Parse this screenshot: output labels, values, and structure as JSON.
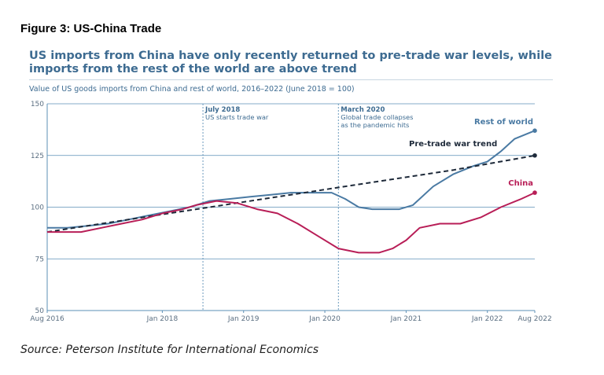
{
  "figure_label": "Figure 3: US-China Trade",
  "source": "Source: Peterson Institute for International Economics",
  "chart_data": {
    "type": "line",
    "title": "US imports from China have only recently returned to pre-trade war levels, while imports from the rest of the world are above trend",
    "subtitle": "Value of US goods imports from China and rest of world, 2016–2022 (June 2018 = 100)",
    "xlabel": "",
    "ylabel": "",
    "x_range": [
      "2016-08",
      "2022-08"
    ],
    "ylim": [
      50,
      150
    ],
    "yticks": [
      50,
      75,
      100,
      125,
      150
    ],
    "xtick_labels": [
      {
        "date": "2016-08",
        "label": "Aug 2016"
      },
      {
        "date": "2018-01",
        "label": "Jan 2018"
      },
      {
        "date": "2019-01",
        "label": "Jan 2019"
      },
      {
        "date": "2020-01",
        "label": "Jan 2020"
      },
      {
        "date": "2021-01",
        "label": "Jan 2021"
      },
      {
        "date": "2022-01",
        "label": "Jan 2022"
      },
      {
        "date": "2022-08",
        "label": "Aug 2022"
      }
    ],
    "grid": "horizontal",
    "annotations": [
      {
        "date": "2018-07",
        "lines": [
          "July 2018",
          "US starts trade war"
        ]
      },
      {
        "date": "2020-03",
        "lines": [
          "March 2020",
          "Global trade collapses",
          "as the pandemic hits"
        ]
      }
    ],
    "series": [
      {
        "name": "Rest of world",
        "color": "#4a7aa3",
        "style": "solid",
        "x": [
          "2016-08",
          "2016-11",
          "2017-02",
          "2017-05",
          "2017-08",
          "2017-11",
          "2018-02",
          "2018-05",
          "2018-08",
          "2018-11",
          "2019-02",
          "2019-05",
          "2019-08",
          "2019-11",
          "2020-02",
          "2020-04",
          "2020-06",
          "2020-08",
          "2020-10",
          "2020-12",
          "2021-02",
          "2021-05",
          "2021-08",
          "2021-11",
          "2022-01",
          "2022-03",
          "2022-05",
          "2022-08"
        ],
        "y": [
          90,
          90,
          91,
          92,
          94,
          96,
          98,
          100,
          103,
          104,
          105,
          106,
          107,
          107,
          107,
          104,
          100,
          99,
          99,
          99,
          101,
          110,
          116,
          120,
          122,
          127,
          133,
          137
        ]
      },
      {
        "name": "Pre-trade war trend",
        "color": "#1e2a3a",
        "style": "dashed",
        "x": [
          "2016-08",
          "2017-08",
          "2018-08",
          "2019-08",
          "2020-08",
          "2021-08",
          "2022-08"
        ],
        "y": [
          88,
          94,
          100,
          106,
          112,
          118,
          125
        ]
      },
      {
        "name": "China",
        "color": "#b81e57",
        "style": "solid",
        "x": [
          "2016-08",
          "2016-11",
          "2017-01",
          "2017-04",
          "2017-07",
          "2017-10",
          "2018-01",
          "2018-04",
          "2018-06",
          "2018-09",
          "2018-12",
          "2019-03",
          "2019-06",
          "2019-09",
          "2019-12",
          "2020-03",
          "2020-06",
          "2020-09",
          "2020-11",
          "2021-01",
          "2021-03",
          "2021-06",
          "2021-09",
          "2021-12",
          "2022-03",
          "2022-06",
          "2022-08"
        ],
        "y": [
          88,
          88,
          88,
          90,
          92,
          94,
          97,
          99,
          101,
          103,
          102,
          99,
          97,
          92,
          86,
          80,
          78,
          78,
          80,
          84,
          90,
          92,
          92,
          95,
          100,
          104,
          107
        ]
      }
    ]
  }
}
